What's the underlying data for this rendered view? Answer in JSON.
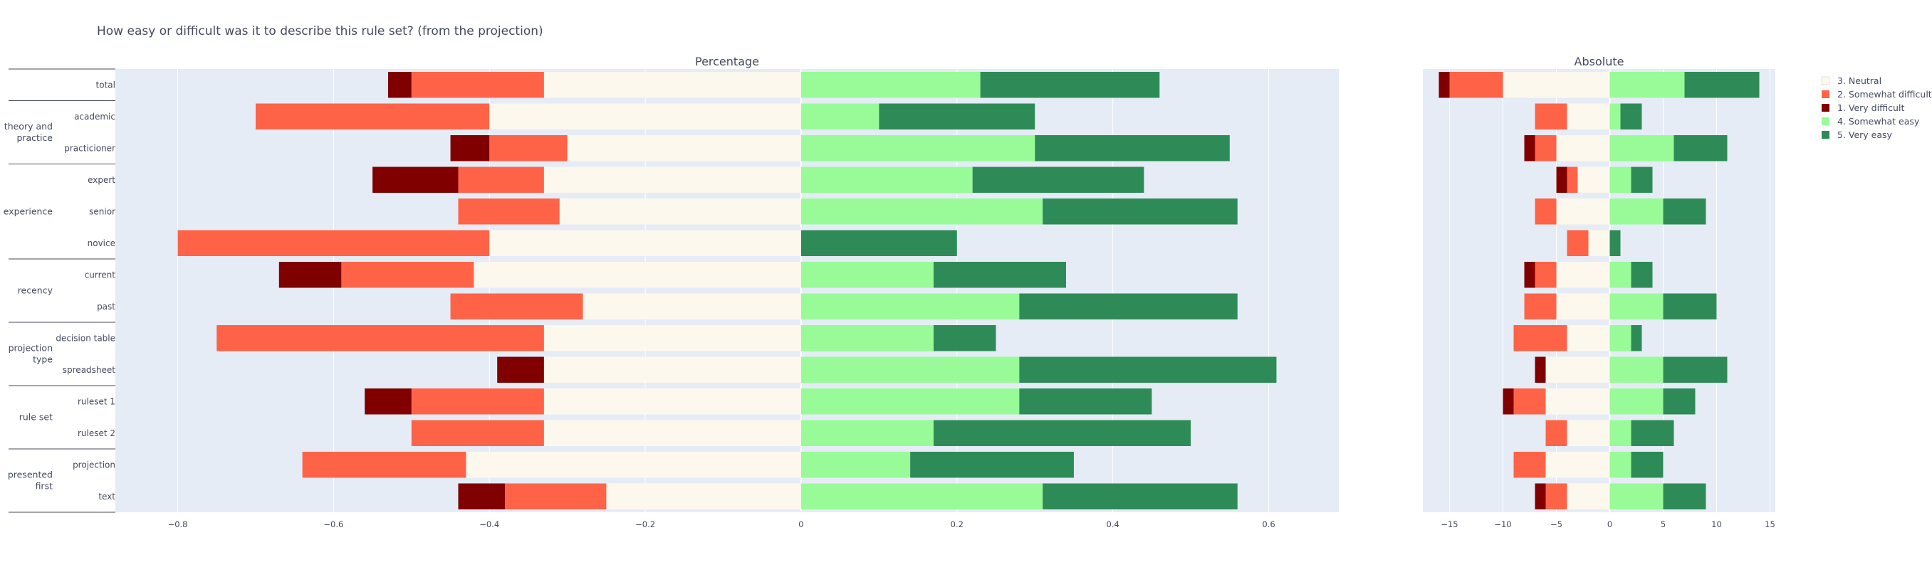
{
  "title": "How easy or difficult was it to describe this rule set? (from the projection)",
  "chart_data": {
    "type": "bar",
    "orientation": "horizontal",
    "stacking": "diverging",
    "legend": {
      "position": "top-right",
      "entries": [
        {
          "key": "neutral",
          "label": "3. Neutral",
          "color": "#fdf8ee"
        },
        {
          "key": "somewhat_difficult",
          "label": "2. Somewhat difficult",
          "color": "#ff6347"
        },
        {
          "key": "very_difficult",
          "label": "1. Very difficult",
          "color": "#800000"
        },
        {
          "key": "somewhat_easy",
          "label": "4. Somewhat easy",
          "color": "#98fb98"
        },
        {
          "key": "very_easy",
          "label": "5. Very easy",
          "color": "#2e8b57"
        }
      ]
    },
    "groups": [
      {
        "label": "",
        "items": [
          "total"
        ]
      },
      {
        "label": "theory and practice",
        "lines": [
          "theory and",
          "practice"
        ],
        "items": [
          "academic",
          "practicioner"
        ]
      },
      {
        "label": "experience",
        "lines": [
          "experience"
        ],
        "items": [
          "expert",
          "senior",
          "novice"
        ]
      },
      {
        "label": "recency",
        "lines": [
          "recency"
        ],
        "items": [
          "current",
          "past"
        ]
      },
      {
        "label": "projection type",
        "lines": [
          "projection",
          "type"
        ],
        "items": [
          "decision table",
          "spreadsheet"
        ]
      },
      {
        "label": "rule set",
        "lines": [
          "rule set"
        ],
        "items": [
          "ruleset 1",
          "ruleset 2"
        ]
      },
      {
        "label": "presented first",
        "lines": [
          "presented",
          "first"
        ],
        "items": [
          "projection",
          "text"
        ]
      }
    ],
    "categories": [
      "total",
      "academic",
      "practicioner",
      "expert",
      "senior",
      "novice",
      "current",
      "past",
      "decision table",
      "spreadsheet",
      "ruleset 1",
      "ruleset 2",
      "projection",
      "text"
    ],
    "panels": [
      {
        "title": "Percentage",
        "xlim": [
          -0.88,
          0.69
        ],
        "xticks": [
          -0.8,
          -0.6,
          -0.4,
          -0.2,
          0,
          0.2,
          0.4,
          0.6
        ],
        "xtick_labels": [
          "−0.8",
          "−0.6",
          "−0.4",
          "−0.2",
          "0",
          "0.2",
          "0.4",
          "0.6"
        ],
        "series": {
          "neutral_left": [
            0.33,
            0.4,
            0.3,
            0.33,
            0.31,
            0.4,
            0.42,
            0.28,
            0.33,
            0.33,
            0.33,
            0.33,
            0.43,
            0.25
          ],
          "neutral_right": [
            0.0,
            0.0,
            0.0,
            0.0,
            0.0,
            0.0,
            0.0,
            0.0,
            0.0,
            0.0,
            0.0,
            0.0,
            0.0,
            0.0
          ],
          "somewhat_difficult": [
            0.17,
            0.3,
            0.1,
            0.11,
            0.13,
            0.4,
            0.17,
            0.17,
            0.42,
            0.0,
            0.17,
            0.17,
            0.21,
            0.13
          ],
          "very_difficult": [
            0.03,
            0.0,
            0.05,
            0.11,
            0.0,
            0.0,
            0.08,
            0.0,
            0.0,
            0.06,
            0.06,
            0.0,
            0.0,
            0.06
          ],
          "somewhat_easy": [
            0.23,
            0.1,
            0.3,
            0.22,
            0.31,
            0.0,
            0.17,
            0.28,
            0.17,
            0.28,
            0.28,
            0.17,
            0.14,
            0.31
          ],
          "very_easy": [
            0.23,
            0.2,
            0.25,
            0.22,
            0.25,
            0.2,
            0.17,
            0.28,
            0.08,
            0.33,
            0.17,
            0.33,
            0.21,
            0.25
          ]
        }
      },
      {
        "title": "Absolute",
        "xlim": [
          -17.5,
          15.5
        ],
        "xticks": [
          -15,
          -10,
          -5,
          0,
          5,
          10,
          15
        ],
        "xtick_labels": [
          "−15",
          "−10",
          "−5",
          "0",
          "5",
          "10",
          "15"
        ],
        "series": {
          "neutral_left": [
            10,
            4,
            5,
            3,
            5,
            2,
            5,
            5,
            4,
            6,
            6,
            4,
            6,
            4
          ],
          "neutral_right": [
            0,
            0,
            0,
            0,
            0,
            0,
            0,
            0,
            0,
            0,
            0,
            0,
            0,
            0
          ],
          "somewhat_difficult": [
            5,
            3,
            2,
            1,
            2,
            2,
            2,
            3,
            5,
            0,
            3,
            2,
            3,
            2
          ],
          "very_difficult": [
            1,
            0,
            1,
            1,
            0,
            0,
            1,
            0,
            0,
            1,
            1,
            0,
            0,
            1
          ],
          "somewhat_easy": [
            7,
            1,
            6,
            2,
            5,
            0,
            2,
            5,
            2,
            5,
            5,
            2,
            2,
            5
          ],
          "very_easy": [
            7,
            2,
            5,
            2,
            4,
            1,
            2,
            5,
            1,
            6,
            3,
            4,
            3,
            4
          ]
        }
      }
    ]
  }
}
